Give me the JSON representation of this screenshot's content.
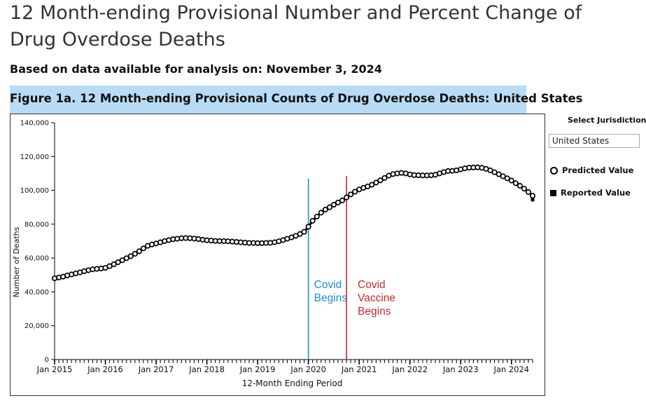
{
  "page": {
    "title": "12 Month-ending Provisional Number and Percent Change of Drug Overdose Deaths",
    "subtitle": "Based on data available for analysis on: November 3, 2024",
    "figure_title": "Figure 1a. 12 Month-ending Provisional Counts of Drug Overdose Deaths: United States"
  },
  "sidebar": {
    "jurisdiction_label": "Select Jurisdiction",
    "jurisdiction_value": "United States"
  },
  "legend": {
    "predicted": "Predicted Value",
    "reported": "Reported Value"
  },
  "chart_data": {
    "type": "line",
    "xlabel": "12-Month Ending Period",
    "ylabel": "Number of Deaths",
    "ylim": [
      0,
      140000
    ],
    "yticks": [
      0,
      20000,
      40000,
      60000,
      80000,
      100000,
      120000,
      140000
    ],
    "ytick_labels": [
      "0",
      "20,000",
      "40,000",
      "60,000",
      "80,000",
      "100,000",
      "120,000",
      "140,000"
    ],
    "xticks": [
      "2015-01",
      "2016-01",
      "2017-01",
      "2018-01",
      "2019-01",
      "2020-01",
      "2021-01",
      "2022-01",
      "2023-01",
      "2024-01"
    ],
    "xtick_labels": [
      "Jan 2015",
      "Jan 2016",
      "Jan 2017",
      "Jan 2018",
      "Jan 2019",
      "Jan 2020",
      "Jan 2021",
      "Jan 2022",
      "Jan 2023",
      "Jan 2024"
    ],
    "xlim": [
      "2015-01",
      "2024-06"
    ],
    "grid": false,
    "legend": "right",
    "series": [
      {
        "name": "Predicted Value",
        "marker": "open-circle",
        "color": "#000000",
        "x": [
          "2015-01",
          "2015-02",
          "2015-03",
          "2015-04",
          "2015-05",
          "2015-06",
          "2015-07",
          "2015-08",
          "2015-09",
          "2015-10",
          "2015-11",
          "2015-12",
          "2016-01",
          "2016-02",
          "2016-03",
          "2016-04",
          "2016-05",
          "2016-06",
          "2016-07",
          "2016-08",
          "2016-09",
          "2016-10",
          "2016-11",
          "2016-12",
          "2017-01",
          "2017-02",
          "2017-03",
          "2017-04",
          "2017-05",
          "2017-06",
          "2017-07",
          "2017-08",
          "2017-09",
          "2017-10",
          "2017-11",
          "2017-12",
          "2018-01",
          "2018-02",
          "2018-03",
          "2018-04",
          "2018-05",
          "2018-06",
          "2018-07",
          "2018-08",
          "2018-09",
          "2018-10",
          "2018-11",
          "2018-12",
          "2019-01",
          "2019-02",
          "2019-03",
          "2019-04",
          "2019-05",
          "2019-06",
          "2019-07",
          "2019-08",
          "2019-09",
          "2019-10",
          "2019-11",
          "2019-12",
          "2020-01",
          "2020-02",
          "2020-03",
          "2020-04",
          "2020-05",
          "2020-06",
          "2020-07",
          "2020-08",
          "2020-09",
          "2020-10",
          "2020-11",
          "2020-12",
          "2021-01",
          "2021-02",
          "2021-03",
          "2021-04",
          "2021-05",
          "2021-06",
          "2021-07",
          "2021-08",
          "2021-09",
          "2021-10",
          "2021-11",
          "2021-12",
          "2022-01",
          "2022-02",
          "2022-03",
          "2022-04",
          "2022-05",
          "2022-06",
          "2022-07",
          "2022-08",
          "2022-09",
          "2022-10",
          "2022-11",
          "2022-12",
          "2023-01",
          "2023-02",
          "2023-03",
          "2023-04",
          "2023-05",
          "2023-06",
          "2023-07",
          "2023-08",
          "2023-09",
          "2023-10",
          "2023-11",
          "2023-12",
          "2024-01",
          "2024-02",
          "2024-03",
          "2024-04",
          "2024-05",
          "2024-06"
        ],
        "values": [
          48000,
          48500,
          49000,
          49700,
          50300,
          50900,
          51500,
          52200,
          52800,
          53300,
          53600,
          53800,
          54200,
          55200,
          56300,
          57500,
          58700,
          59900,
          61100,
          62500,
          64000,
          65700,
          67200,
          68000,
          68600,
          69300,
          70000,
          70600,
          71100,
          71400,
          71700,
          71800,
          71700,
          71500,
          71200,
          70800,
          70500,
          70300,
          70100,
          70000,
          70000,
          69900,
          69700,
          69500,
          69300,
          69100,
          68900,
          68900,
          68800,
          68800,
          68900,
          69000,
          69300,
          69900,
          70600,
          71400,
          72200,
          73100,
          74200,
          75500,
          78500,
          82000,
          84500,
          86800,
          88600,
          90000,
          91500,
          92800,
          94000,
          95800,
          97600,
          99200,
          100500,
          101500,
          102300,
          103300,
          104600,
          105900,
          107300,
          108700,
          109600,
          110000,
          110300,
          110000,
          109400,
          109000,
          108900,
          108800,
          108800,
          108900,
          109200,
          110000,
          110800,
          111400,
          111500,
          111800,
          112400,
          113000,
          113400,
          113500,
          113600,
          113300,
          112700,
          111800,
          110700,
          109500,
          108300,
          107100,
          105800,
          104200,
          102700,
          101000,
          99000,
          96800
        ]
      },
      {
        "name": "Reported Value",
        "marker": "filled-square",
        "color": "#000000",
        "x": [
          "2015-01",
          "2015-06",
          "2016-01",
          "2016-06",
          "2017-01",
          "2017-06",
          "2018-01",
          "2018-06",
          "2019-01",
          "2019-06",
          "2020-01",
          "2020-06",
          "2021-01",
          "2021-06",
          "2022-01",
          "2022-06",
          "2023-01",
          "2023-06",
          "2024-01",
          "2024-06"
        ],
        "values": [
          47800,
          50700,
          54000,
          59700,
          68400,
          71200,
          70400,
          69800,
          68700,
          69700,
          78200,
          89800,
          100300,
          105700,
          109200,
          108600,
          112200,
          113100,
          105600,
          94500
        ]
      }
    ],
    "annotations": [
      {
        "type": "vline",
        "x": "2020-01",
        "color": "#1b8fd1",
        "lines": [
          "Covid",
          "Begins"
        ]
      },
      {
        "type": "vline",
        "x": "2020-10",
        "color": "#c62a2a",
        "lines": [
          "Covid",
          "Vaccine",
          "Begins"
        ]
      }
    ]
  }
}
